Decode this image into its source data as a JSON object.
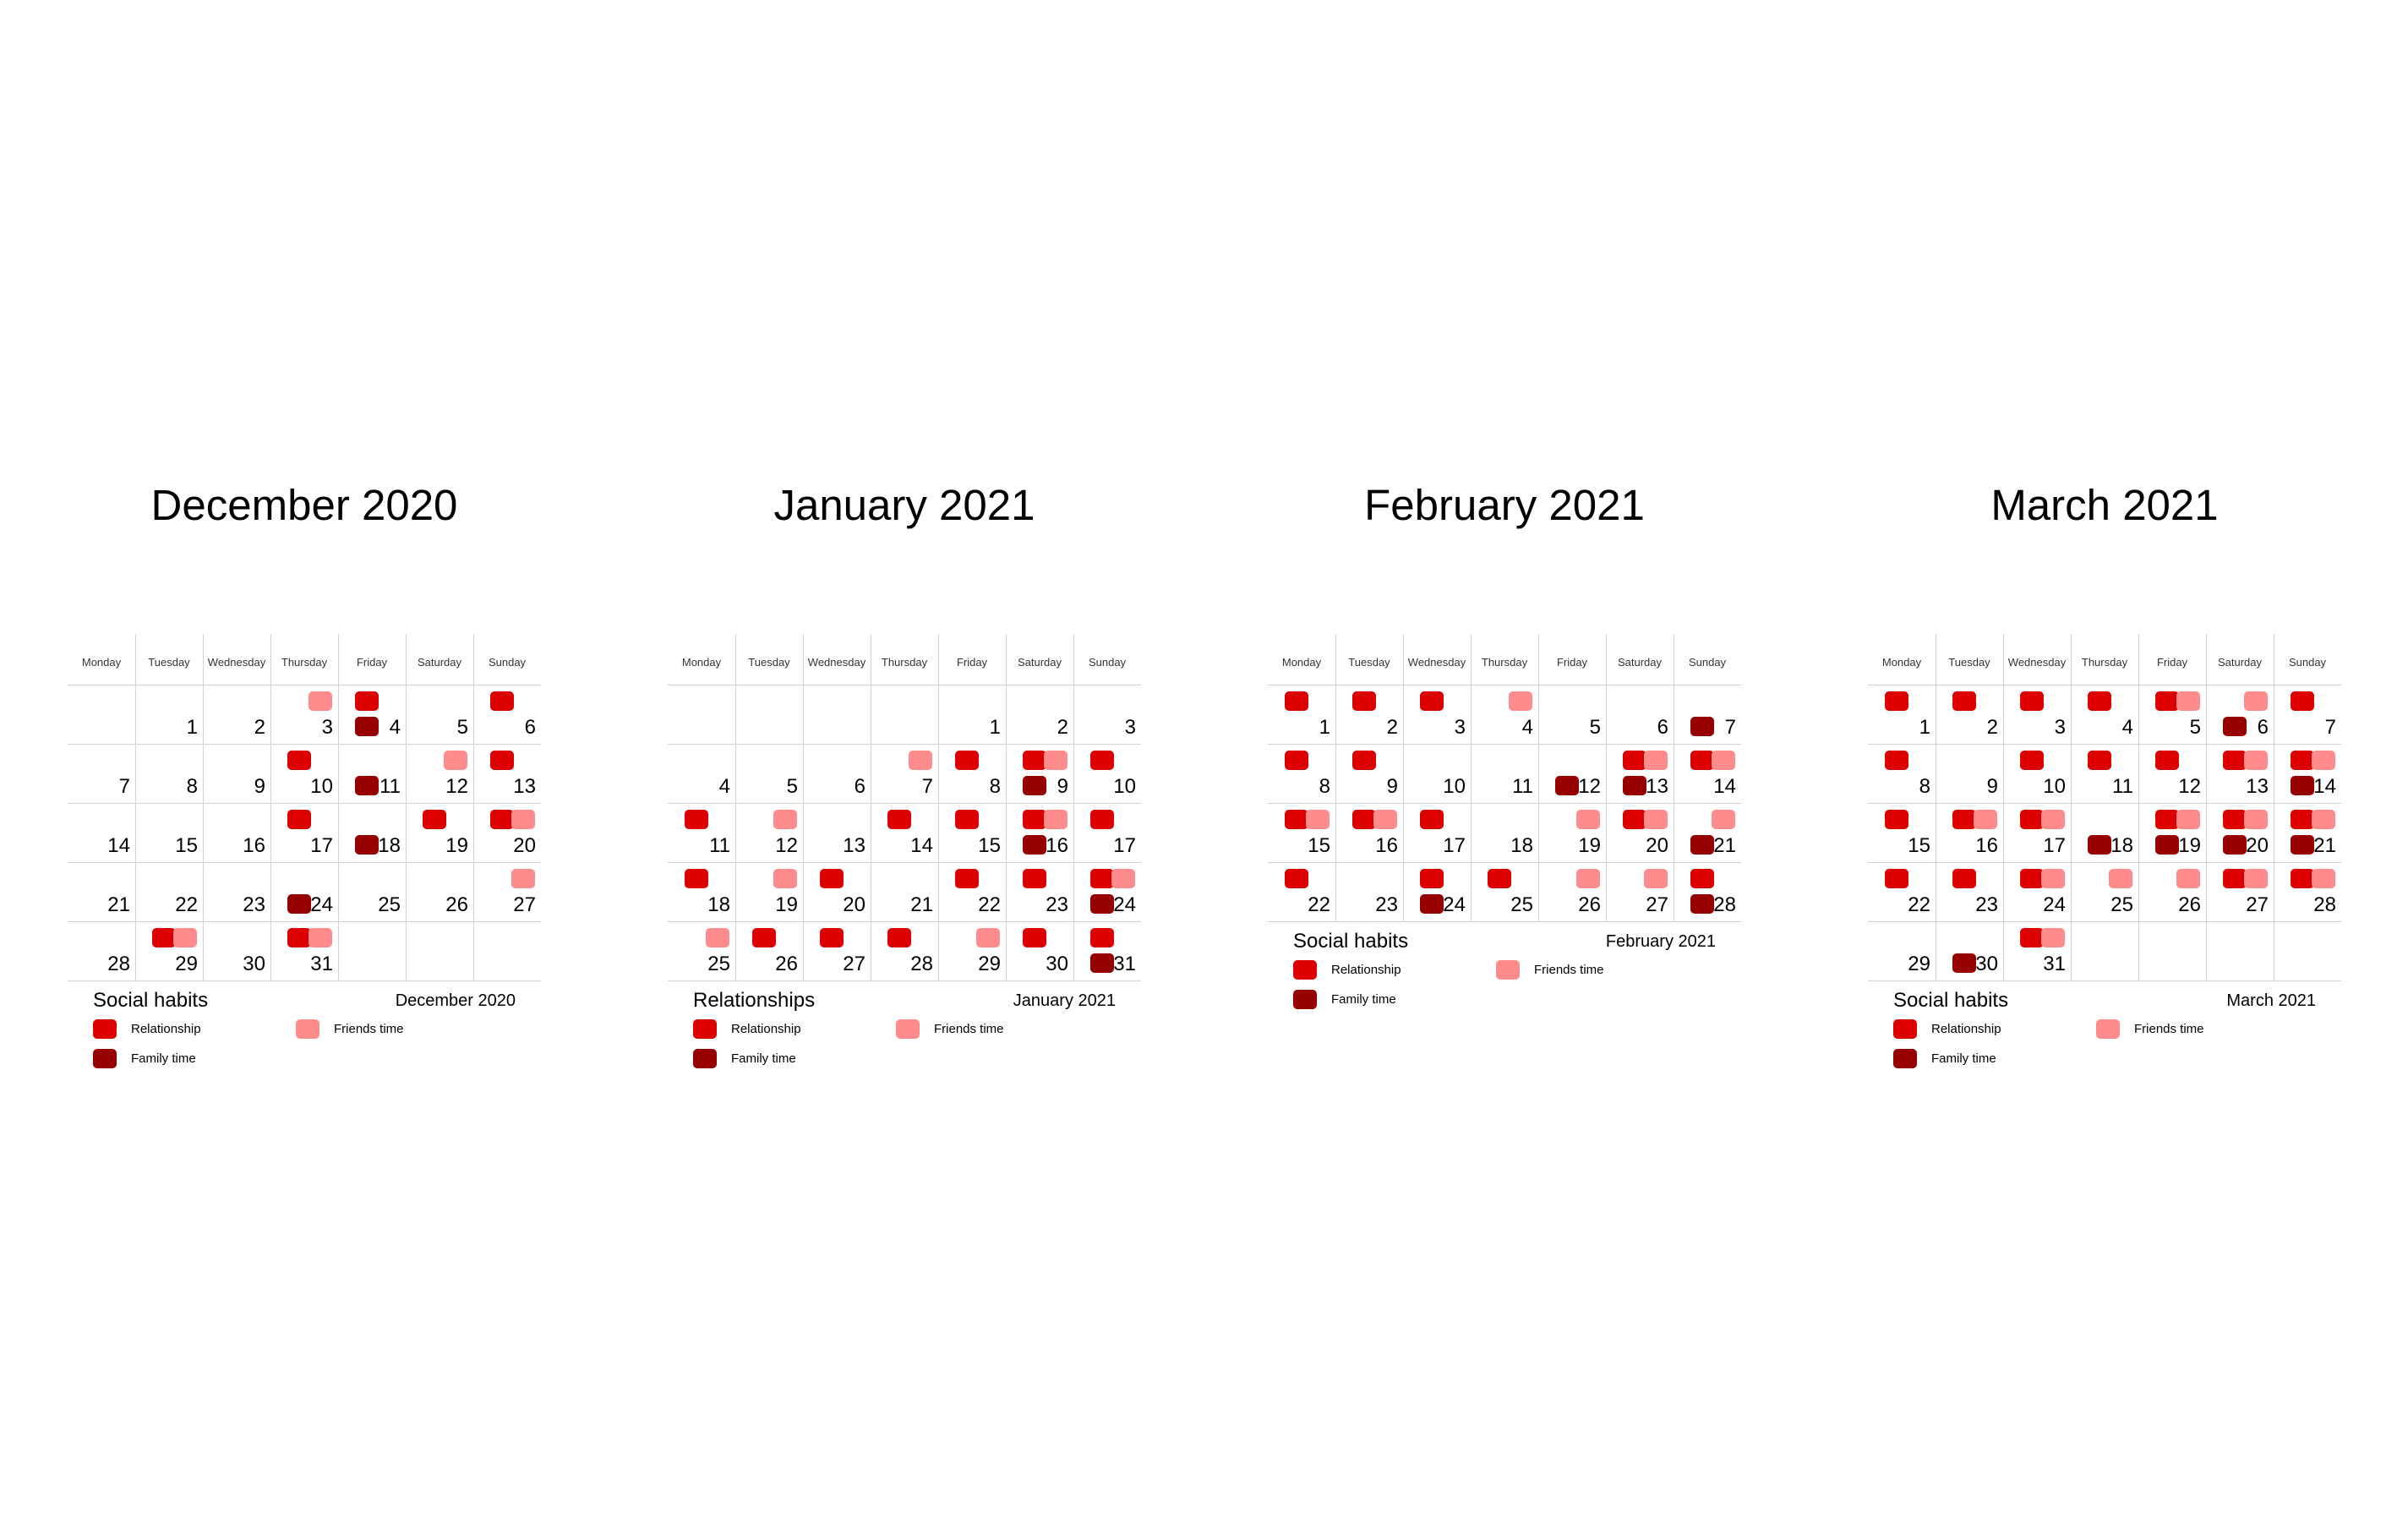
{
  "chart_data": {
    "type": "table",
    "title": "",
    "colors": {
      "Relationship": "#dd0000",
      "Family time": "#960000",
      "Friends time": "#ff8c8c"
    },
    "weekday_labels": [
      "Monday",
      "Tuesday",
      "Wednesday",
      "Thursday",
      "Friday",
      "Saturday",
      "Sunday"
    ],
    "months": [
      {
        "name": "December 2020",
        "legend_title": "Social habits",
        "legend_month": "December 2020",
        "legend": [
          "Relationship",
          "Friends time",
          "Family time"
        ],
        "first_weekday": 1,
        "num_days": 31,
        "events": {
          "3": [
            "Friends time"
          ],
          "4": [
            "Relationship",
            "Family time"
          ],
          "6": [
            "Relationship"
          ],
          "10": [
            "Relationship"
          ],
          "11": [
            "Family time"
          ],
          "12": [
            "Friends time"
          ],
          "13": [
            "Relationship"
          ],
          "17": [
            "Relationship"
          ],
          "18": [
            "Family time"
          ],
          "19": [
            "Relationship"
          ],
          "20": [
            "Relationship",
            "Friends time"
          ],
          "24": [
            "Family time"
          ],
          "27": [
            "Friends time"
          ],
          "29": [
            "Relationship",
            "Friends time"
          ],
          "31": [
            "Relationship",
            "Friends time"
          ]
        }
      },
      {
        "name": "January 2021",
        "legend_title": "Relationships",
        "legend_month": "January 2021",
        "legend": [
          "Relationship",
          "Friends time",
          "Family time"
        ],
        "first_weekday": 4,
        "num_days": 31,
        "events": {
          "7": [
            "Friends time"
          ],
          "8": [
            "Relationship"
          ],
          "9": [
            "Relationship",
            "Friends time",
            "Family time"
          ],
          "10": [
            "Relationship"
          ],
          "11": [
            "Relationship"
          ],
          "12": [
            "Friends time"
          ],
          "14": [
            "Relationship"
          ],
          "15": [
            "Relationship"
          ],
          "16": [
            "Relationship",
            "Friends time",
            "Family time"
          ],
          "17": [
            "Relationship"
          ],
          "18": [
            "Relationship"
          ],
          "19": [
            "Friends time"
          ],
          "20": [
            "Relationship"
          ],
          "22": [
            "Relationship"
          ],
          "23": [
            "Relationship"
          ],
          "24": [
            "Relationship",
            "Friends time",
            "Family time"
          ],
          "25": [
            "Friends time"
          ],
          "26": [
            "Relationship"
          ],
          "27": [
            "Relationship"
          ],
          "28": [
            "Relationship"
          ],
          "29": [
            "Friends time"
          ],
          "30": [
            "Relationship"
          ],
          "31": [
            "Relationship",
            "Family time"
          ]
        }
      },
      {
        "name": "February 2021",
        "legend_title": "Social habits",
        "legend_month": "February 2021",
        "legend": [
          "Relationship",
          "Friends time",
          "Family time"
        ],
        "first_weekday": 0,
        "num_days": 28,
        "events": {
          "1": [
            "Relationship"
          ],
          "2": [
            "Relationship"
          ],
          "3": [
            "Relationship"
          ],
          "4": [
            "Friends time"
          ],
          "7": [
            "Family time"
          ],
          "8": [
            "Relationship"
          ],
          "9": [
            "Relationship"
          ],
          "12": [
            "Family time"
          ],
          "13": [
            "Relationship",
            "Friends time",
            "Family time"
          ],
          "14": [
            "Relationship",
            "Friends time"
          ],
          "15": [
            "Relationship",
            "Friends time"
          ],
          "16": [
            "Relationship",
            "Friends time"
          ],
          "17": [
            "Relationship"
          ],
          "19": [
            "Friends time"
          ],
          "20": [
            "Relationship",
            "Friends time"
          ],
          "21": [
            "Friends time",
            "Family time"
          ],
          "22": [
            "Relationship"
          ],
          "24": [
            "Relationship",
            "Family time"
          ],
          "25": [
            "Relationship"
          ],
          "26": [
            "Friends time"
          ],
          "27": [
            "Friends time"
          ],
          "28": [
            "Relationship",
            "Family time"
          ]
        }
      },
      {
        "name": "March 2021",
        "legend_title": "Social habits",
        "legend_month": "March 2021",
        "legend": [
          "Relationship",
          "Friends time",
          "Family time"
        ],
        "first_weekday": 0,
        "num_days": 31,
        "events": {
          "1": [
            "Relationship"
          ],
          "2": [
            "Relationship"
          ],
          "3": [
            "Relationship"
          ],
          "4": [
            "Relationship"
          ],
          "5": [
            "Relationship",
            "Friends time"
          ],
          "6": [
            "Friends time",
            "Family time"
          ],
          "7": [
            "Relationship"
          ],
          "8": [
            "Relationship"
          ],
          "10": [
            "Relationship"
          ],
          "11": [
            "Relationship"
          ],
          "12": [
            "Relationship"
          ],
          "13": [
            "Relationship",
            "Friends time"
          ],
          "14": [
            "Relationship",
            "Friends time",
            "Family time"
          ],
          "15": [
            "Relationship"
          ],
          "16": [
            "Relationship",
            "Friends time"
          ],
          "17": [
            "Relationship",
            "Friends time"
          ],
          "18": [
            "Family time"
          ],
          "19": [
            "Relationship",
            "Friends time",
            "Family time"
          ],
          "20": [
            "Relationship",
            "Friends time",
            "Family time"
          ],
          "21": [
            "Relationship",
            "Friends time",
            "Family time"
          ],
          "22": [
            "Relationship"
          ],
          "23": [
            "Relationship"
          ],
          "24": [
            "Relationship",
            "Friends time"
          ],
          "25": [
            "Friends time"
          ],
          "26": [
            "Friends time"
          ],
          "27": [
            "Relationship",
            "Friends time"
          ],
          "28": [
            "Relationship",
            "Friends time"
          ],
          "30": [
            "Family time"
          ],
          "31": [
            "Relationship",
            "Friends time"
          ]
        }
      }
    ]
  }
}
